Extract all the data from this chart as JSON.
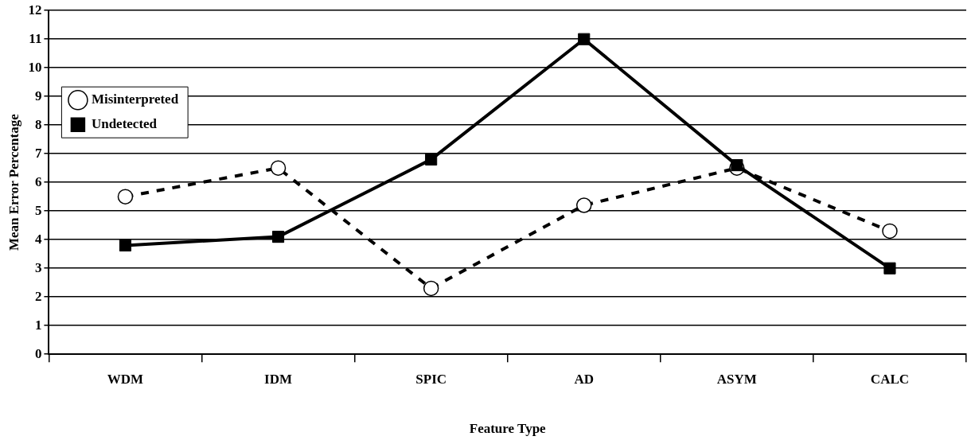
{
  "chart_data": {
    "type": "line",
    "xlabel": "Feature Type",
    "ylabel": "Mean Error Percentage",
    "categories": [
      "WDM",
      "IDM",
      "SPIC",
      "AD",
      "ASYM",
      "CALC"
    ],
    "series": [
      {
        "name": "Misinterpreted",
        "color": "#000000",
        "values": [
          5.5,
          6.5,
          2.3,
          5.2,
          6.5,
          4.3
        ],
        "marker": "circle",
        "line_style": "dashed"
      },
      {
        "name": "Undetected",
        "color": "#000000",
        "values": [
          3.8,
          4.1,
          6.8,
          11.0,
          6.6,
          3.0
        ],
        "marker": "square",
        "line_style": "solid"
      }
    ],
    "ylim": [
      0,
      12
    ],
    "yticks": [
      0,
      1,
      2,
      3,
      4,
      5,
      6,
      7,
      8,
      9,
      10,
      11,
      12
    ],
    "grid": "y",
    "legend": "top left"
  }
}
